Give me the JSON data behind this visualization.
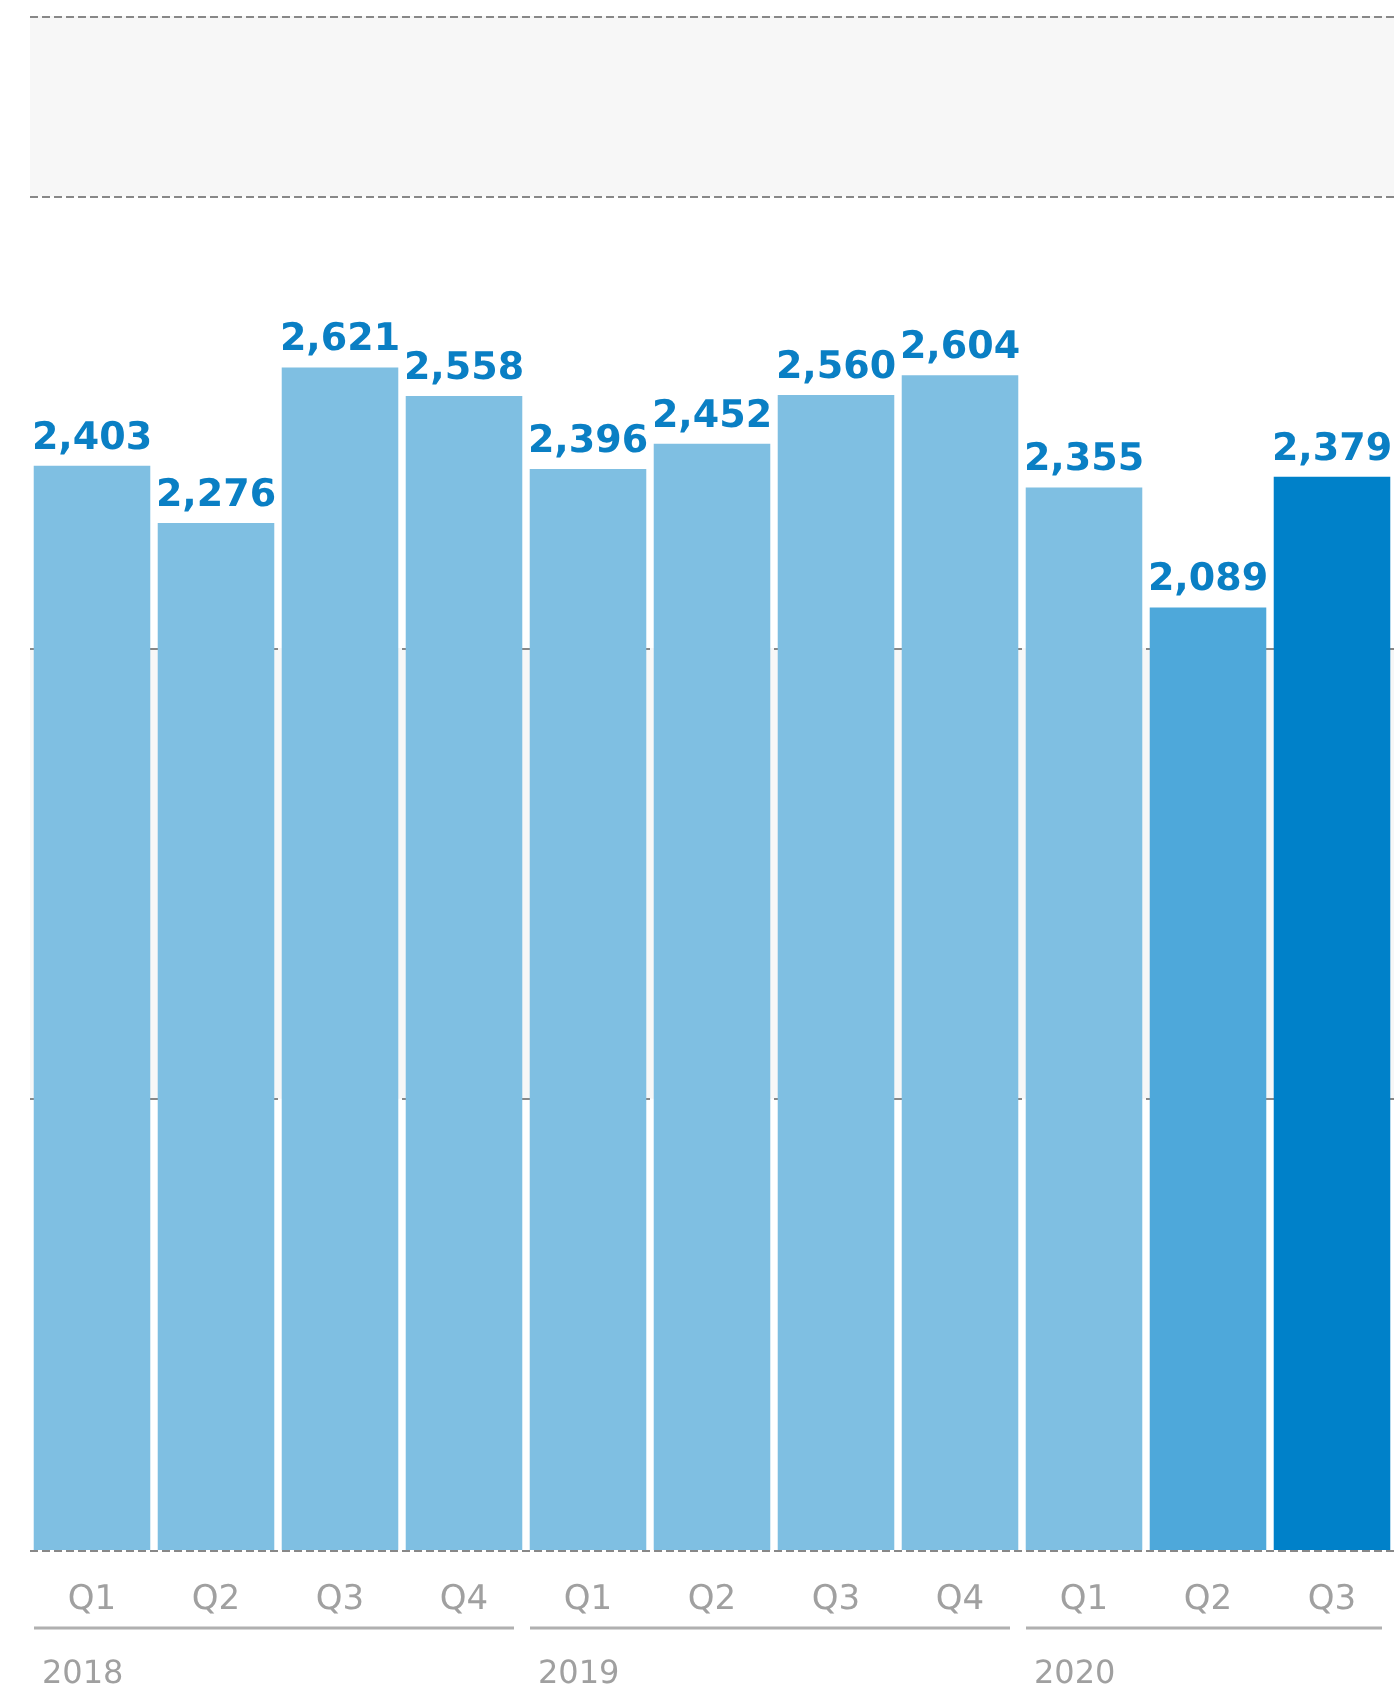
{
  "chart_data": {
    "type": "bar",
    "categories": [
      "Q1",
      "Q2",
      "Q3",
      "Q4",
      "Q1",
      "Q2",
      "Q3",
      "Q4",
      "Q1",
      "Q2",
      "Q3"
    ],
    "values": [
      2403,
      2276,
      2621,
      2558,
      2396,
      2452,
      2560,
      2604,
      2355,
      2089,
      2379
    ],
    "colors": [
      "#7fbfe2",
      "#7fbfe2",
      "#7fbfe2",
      "#7fbfe2",
      "#7fbfe2",
      "#7fbfe2",
      "#7fbfe2",
      "#7fbfe2",
      "#7fbfe2",
      "#4ea8da",
      "#0081c9"
    ],
    "annotations": [
      "2018",
      "2019",
      "2020"
    ],
    "value_labels": [
      "2,403",
      "2,276",
      "2,621",
      "2,558",
      "2,396",
      "2,452",
      "2,560",
      "2,604",
      "2,355",
      "2,089",
      "2,379"
    ],
    "ylim": [
      0,
      3400
    ],
    "yticks": [
      {
        "value": 0,
        "label": null
      },
      {
        "value": 1000,
        "label": null
      },
      {
        "value": 2000,
        "label": null
      },
      {
        "value": 3000,
        "label": null
      }
    ],
    "tick_labels": "x",
    "grid": "y"
  }
}
